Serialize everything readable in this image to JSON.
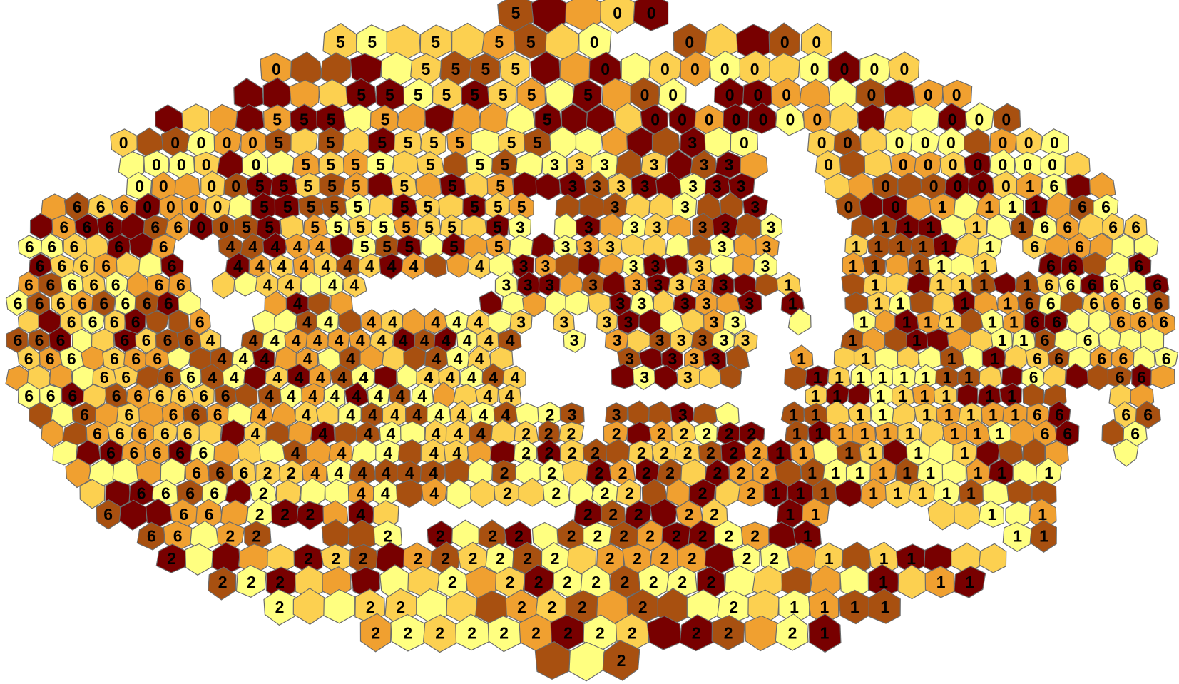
{
  "map": {
    "palette": [
      "#ffff80",
      "#fcd050",
      "#f0a030",
      "#a85010",
      "#780000"
    ],
    "outline_color": "#6b6b6b",
    "background_color": "#ffffff",
    "region_labels": [
      "0",
      "1",
      "2",
      "3",
      "4",
      "5",
      "6"
    ]
  }
}
